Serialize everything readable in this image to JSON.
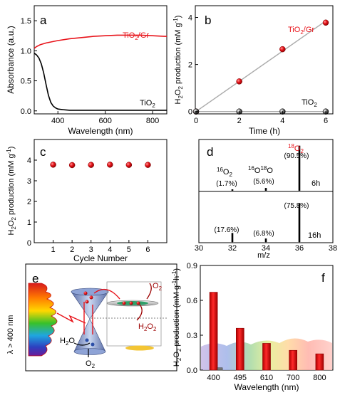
{
  "panels": {
    "a": {
      "letter": "a",
      "xlabel": "Wavelength (nm)",
      "ylabel": "Absorbance (a.u.)",
      "series_label_gr": "TiO",
      "series_label_gr_sub": "2",
      "series_label_gr_tail": "/Gr",
      "series_label_ti": "TiO",
      "series_label_ti_sub": "2"
    },
    "b": {
      "letter": "b",
      "xlabel": "Time (h)",
      "ylabel_main": "H",
      "ylabel_sub1": "2",
      "ylabel_mid": "O",
      "ylabel_sub2": "2",
      "ylabel_tail": " production (mM g",
      "ylabel_sup": "-1",
      "ylabel_end": ")",
      "series_label_gr": "TiO",
      "series_label_gr_sub": "2",
      "series_label_gr_tail": "/Gr",
      "series_label_ti": "TiO",
      "series_label_ti_sub": "2"
    },
    "c": {
      "letter": "c",
      "xlabel": "Cycle Number",
      "ylabel_main": "H",
      "ylabel_sub1": "2",
      "ylabel_mid": "O",
      "ylabel_sub2": "2",
      "ylabel_tail": " production (mM g",
      "ylabel_sup": "-1",
      "ylabel_end": ")"
    },
    "d": {
      "letter": "d",
      "xlabel": "m/z",
      "label_16O2_sup": "16",
      "label_16O2_main": "O",
      "label_16O2_sub": "2",
      "label_16O2_pct": "(1.7%)",
      "label_1618_sup1": "16",
      "label_1618_O1": "O",
      "label_1618_sup2": "18",
      "label_1618_O2": "O",
      "label_1618_pct": "(5.6%)",
      "label_18O2_sup": "18",
      "label_18O2_main": "O",
      "label_18O2_sub": "2",
      "label_18O2_pct": "(90.5%)",
      "top_time": "6h",
      "bot_pct_32": "(17.6%)",
      "bot_pct_34": "(6.8%)",
      "bot_pct_36": "(75.8%)",
      "bottom_time": "16h"
    },
    "e": {
      "letter": "e",
      "lambda_label": "λ > 400 nm",
      "o2_main": "O",
      "o2_sub": "2",
      "h2o2_main": "H",
      "h2o2_sub1": "2",
      "h2o2_mid": "O",
      "h2o2_sub2": "2",
      "h2o_main": "H",
      "h2o_sub": "2",
      "h2o_tail": "O",
      "o2b_main": "O",
      "o2b_sub": "2"
    },
    "f": {
      "letter": "f",
      "xlabel": "Wavelength (nm)",
      "ylabel_main": "H",
      "ylabel_sub1": "2",
      "ylabel_mid": "O",
      "ylabel_sub2": "2",
      "ylabel_tail": " production (mM g",
      "ylabel_sup": "-1",
      "ylabel_mid2": "h",
      "ylabel_sup2": "-1",
      "ylabel_end": ")"
    }
  },
  "colors": {
    "red": "#e8141b",
    "dark_red": "#9c0000",
    "gray_line": "#aaaaaa",
    "black": "#000000"
  },
  "chart_data": [
    {
      "panel": "a",
      "type": "line",
      "xlim": [
        300,
        860
      ],
      "ylim": [
        -0.05,
        1.75
      ],
      "xticks": [
        400,
        600,
        800
      ],
      "yticks": [
        0.0,
        0.5,
        1.0,
        1.5
      ],
      "series": [
        {
          "name": "TiO2/Gr",
          "color": "#e8141b",
          "x": [
            300,
            310,
            325,
            350,
            400,
            450,
            500,
            550,
            600,
            650,
            700,
            750,
            800,
            850,
            860
          ],
          "y": [
            1.04,
            1.07,
            1.1,
            1.13,
            1.17,
            1.2,
            1.22,
            1.24,
            1.25,
            1.26,
            1.26,
            1.26,
            1.25,
            1.24,
            1.24
          ]
        },
        {
          "name": "TiO2",
          "color": "#000000",
          "x": [
            300,
            310,
            320,
            330,
            340,
            350,
            360,
            370,
            380,
            390,
            400,
            420,
            450,
            500,
            600,
            700,
            800,
            860
          ],
          "y": [
            0.96,
            0.93,
            0.88,
            0.78,
            0.63,
            0.44,
            0.26,
            0.14,
            0.08,
            0.05,
            0.03,
            0.02,
            0.01,
            0.01,
            0.01,
            0.01,
            0.01,
            0.01
          ]
        }
      ]
    },
    {
      "panel": "b",
      "type": "scatter",
      "xlim": [
        0,
        6
      ],
      "ylim": [
        -0.1,
        4.5
      ],
      "xticks": [
        0,
        2,
        4,
        6
      ],
      "yticks": [
        0,
        2,
        4
      ],
      "series": [
        {
          "name": "TiO2/Gr",
          "color": "#e8141b",
          "x": [
            0,
            2,
            4,
            6
          ],
          "y": [
            0.0,
            1.28,
            2.65,
            3.78
          ]
        },
        {
          "name": "TiO2",
          "color": "#000000",
          "x": [
            0,
            2,
            4,
            6
          ],
          "y": [
            0.0,
            0.0,
            0.0,
            0.0
          ]
        }
      ]
    },
    {
      "panel": "c",
      "type": "scatter",
      "xlim": [
        0,
        7
      ],
      "ylim": [
        0,
        5
      ],
      "xticks": [
        1,
        2,
        3,
        4,
        5,
        6
      ],
      "yticks": [
        0,
        1,
        2,
        3,
        4
      ],
      "x": [
        1,
        2,
        3,
        4,
        5,
        6
      ],
      "y": [
        3.78,
        3.76,
        3.77,
        3.78,
        3.77,
        3.77
      ]
    },
    {
      "panel": "d",
      "type": "bar",
      "xlim": [
        30,
        38
      ],
      "xticks": [
        30,
        32,
        34,
        36,
        38
      ],
      "series": [
        {
          "name": "6h",
          "x": [
            32,
            34,
            36
          ],
          "percent": [
            1.7,
            5.6,
            90.5
          ]
        },
        {
          "name": "16h",
          "x": [
            32,
            34,
            36
          ],
          "percent": [
            17.6,
            6.8,
            75.8
          ]
        }
      ]
    },
    {
      "panel": "f",
      "type": "bar",
      "ylim": [
        0,
        0.9
      ],
      "yticks": [
        0.0,
        0.3,
        0.6,
        0.9
      ],
      "categories": [
        "400",
        "495",
        "610",
        "700",
        "800"
      ],
      "values": [
        0.67,
        0.36,
        0.23,
        0.17,
        0.14
      ],
      "tio2_value_400": 0.02
    }
  ]
}
